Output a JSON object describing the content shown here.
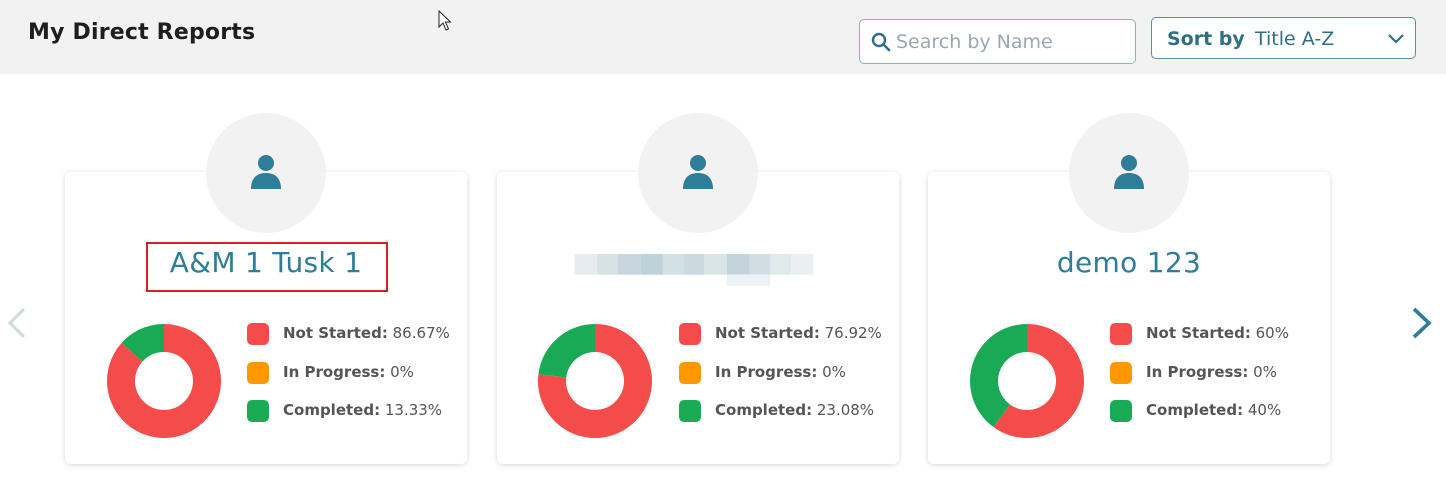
{
  "header": {
    "title": "My Direct Reports"
  },
  "search": {
    "placeholder": "Search by Name",
    "value": ""
  },
  "sort": {
    "label": "Sort by",
    "value": "Title A-Z"
  },
  "colors": {
    "not_started": "#f44b4b",
    "in_progress": "#ff9800",
    "completed": "#1aaa55",
    "accent": "#2e7d99"
  },
  "legend_labels": {
    "not_started": "Not Started:",
    "in_progress": "In Progress:",
    "completed": "Completed:"
  },
  "reports": [
    {
      "name": "A&M 1 Tusk 1",
      "not_started": "86.67%",
      "in_progress": "0%",
      "completed": "13.33%",
      "not_started_value": 86.67,
      "in_progress_value": 0,
      "completed_value": 13.33
    },
    {
      "name": "",
      "not_started": "76.92%",
      "in_progress": "0%",
      "completed": "23.08%",
      "not_started_value": 76.92,
      "in_progress_value": 0,
      "completed_value": 23.08
    },
    {
      "name": "demo 123",
      "not_started": "60%",
      "in_progress": "0%",
      "completed": "40%",
      "not_started_value": 60,
      "in_progress_value": 0,
      "completed_value": 40
    }
  ]
}
